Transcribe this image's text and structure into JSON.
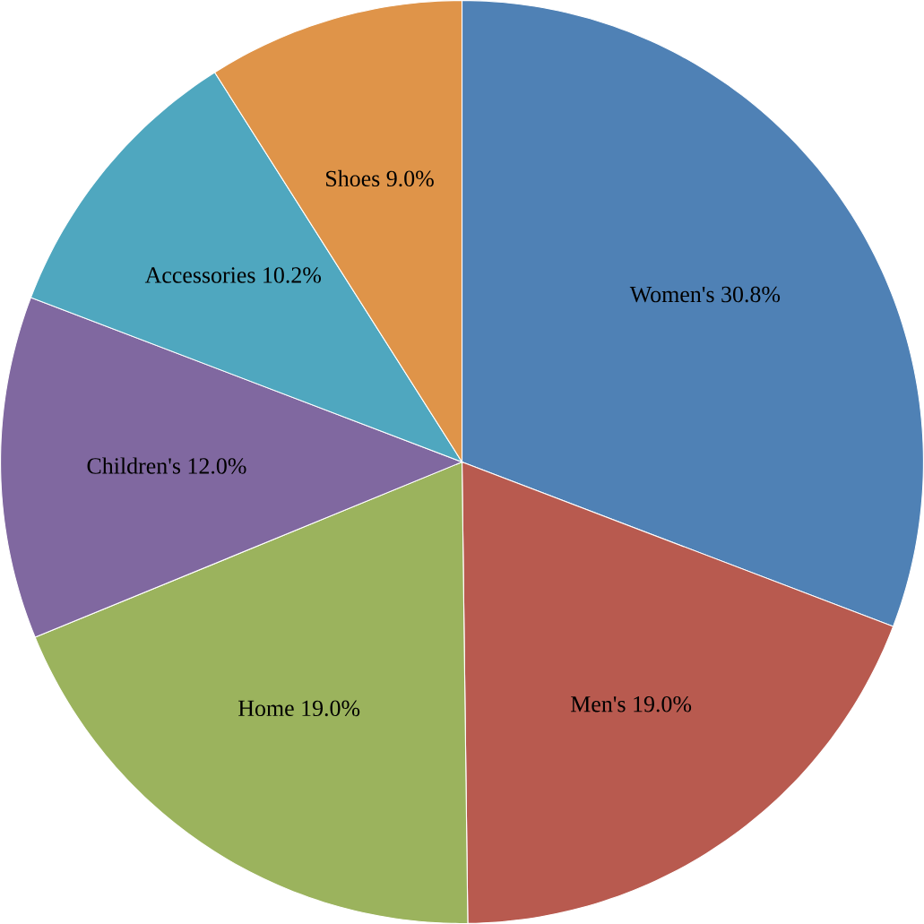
{
  "chart_data": {
    "type": "pie",
    "categories": [
      "Women's",
      "Men's",
      "Home",
      "Children's",
      "Accessories",
      "Shoes"
    ],
    "values": [
      30.8,
      19.0,
      19.0,
      12.0,
      10.2,
      9.0
    ],
    "value_labels": [
      "30.8%",
      "19.0%",
      "19.0%",
      "12.0%",
      "10.2%",
      "9.0%"
    ],
    "colors": [
      "#4f81b5",
      "#b85a4f",
      "#9bb35d",
      "#8068a0",
      "#4fa7bf",
      "#df9449"
    ]
  }
}
